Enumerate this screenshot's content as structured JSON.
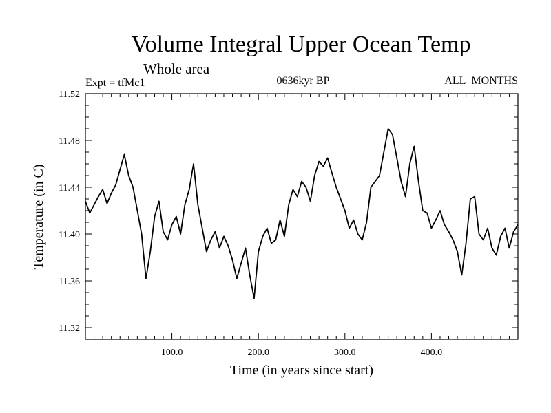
{
  "chart_data": {
    "type": "line",
    "title": "Volume Integral Upper Ocean Temp",
    "subtitle": "Whole area",
    "experiment_label": "Expt = tfMc1",
    "period_label": "0636kyr BP",
    "months_label": "ALL_MONTHS",
    "xlabel": "Time (in years since start)",
    "ylabel": "Temperature (in C)",
    "xlim": [
      0,
      500
    ],
    "ylim": [
      11.31,
      11.52
    ],
    "x_ticks": [
      100,
      200,
      300,
      400
    ],
    "x_tick_labels": [
      "100.0",
      "200.0",
      "300.0",
      "400.0"
    ],
    "y_ticks": [
      11.32,
      11.36,
      11.4,
      11.44,
      11.48,
      11.52
    ],
    "y_tick_labels": [
      "11.32",
      "11.36",
      "11.40",
      "11.44",
      "11.48",
      "11.52"
    ],
    "grid": false,
    "series": [
      {
        "name": "Volume Integral Upper Ocean Temp",
        "x": [
          0,
          5,
          10,
          15,
          20,
          25,
          30,
          35,
          40,
          45,
          50,
          55,
          60,
          65,
          70,
          75,
          80,
          85,
          90,
          95,
          100,
          105,
          110,
          115,
          120,
          125,
          130,
          135,
          140,
          145,
          150,
          155,
          160,
          165,
          170,
          175,
          180,
          185,
          190,
          195,
          200,
          205,
          210,
          215,
          220,
          225,
          230,
          235,
          240,
          245,
          250,
          255,
          260,
          265,
          270,
          275,
          280,
          285,
          290,
          295,
          300,
          305,
          310,
          315,
          320,
          325,
          330,
          335,
          340,
          345,
          350,
          355,
          360,
          365,
          370,
          375,
          380,
          385,
          390,
          395,
          400,
          405,
          410,
          415,
          420,
          425,
          430,
          435,
          440,
          445,
          450,
          455,
          460,
          465,
          470,
          475,
          480,
          485,
          490,
          495,
          500
        ],
        "y": [
          11.428,
          11.418,
          11.425,
          11.432,
          11.438,
          11.426,
          11.435,
          11.442,
          11.455,
          11.468,
          11.45,
          11.44,
          11.42,
          11.4,
          11.362,
          11.385,
          11.415,
          11.428,
          11.402,
          11.395,
          11.408,
          11.415,
          11.4,
          11.425,
          11.438,
          11.46,
          11.425,
          11.405,
          11.385,
          11.395,
          11.402,
          11.388,
          11.398,
          11.39,
          11.378,
          11.362,
          11.375,
          11.388,
          11.365,
          11.345,
          11.385,
          11.398,
          11.405,
          11.392,
          11.395,
          11.412,
          11.398,
          11.425,
          11.438,
          11.432,
          11.445,
          11.44,
          11.428,
          11.45,
          11.462,
          11.458,
          11.465,
          11.452,
          11.44,
          11.43,
          11.42,
          11.405,
          11.412,
          11.4,
          11.395,
          11.41,
          11.44,
          11.445,
          11.45,
          11.47,
          11.49,
          11.485,
          11.465,
          11.445,
          11.432,
          11.46,
          11.475,
          11.445,
          11.42,
          11.418,
          11.405,
          11.412,
          11.42,
          11.408,
          11.402,
          11.395,
          11.385,
          11.365,
          11.392,
          11.43,
          11.432,
          11.4,
          11.395,
          11.405,
          11.388,
          11.382,
          11.398,
          11.405,
          11.388,
          11.402,
          11.408
        ]
      }
    ]
  }
}
